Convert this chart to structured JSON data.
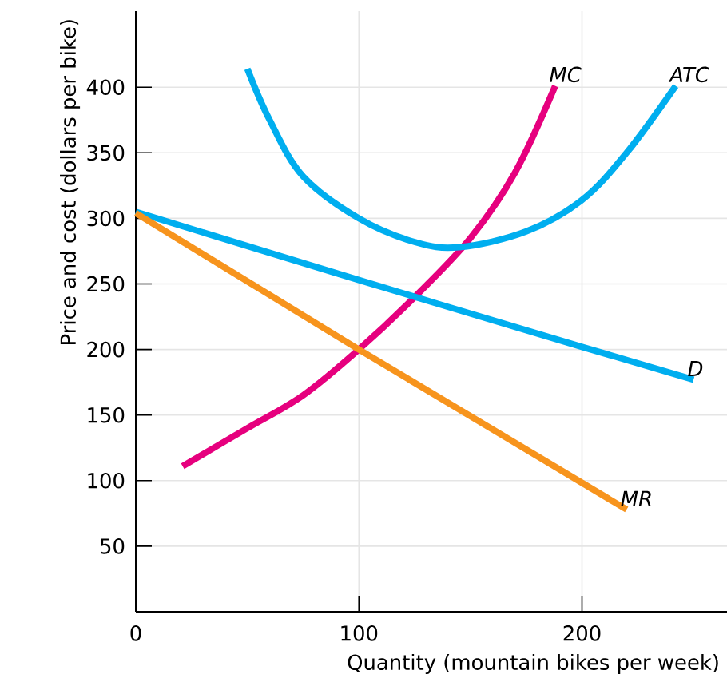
{
  "chart_data": {
    "type": "line",
    "xlabel": "Quantity (mountain bikes per week)",
    "ylabel": "Price and cost (dollars per bike)",
    "xlim": [
      0,
      265
    ],
    "ylim": [
      0,
      458
    ],
    "xticks": [
      {
        "value": 0,
        "label": "0"
      },
      100,
      200
    ],
    "yticks": [
      50,
      100,
      150,
      200,
      250,
      300,
      350,
      400
    ],
    "grid": true,
    "series": [
      {
        "name": "MC",
        "color": "#e6007e",
        "x": [
          21,
          50,
          75,
          100,
          125,
          150,
          170,
          188
        ],
        "values": [
          111,
          140,
          165,
          200,
          240,
          285,
          335,
          401
        ]
      },
      {
        "name": "ATC",
        "color": "#00aeef",
        "x": [
          50,
          60,
          75,
          100,
          125,
          145,
          175,
          200,
          220,
          242
        ],
        "values": [
          414,
          375,
          332,
          300,
          282,
          278,
          290,
          314,
          350,
          401
        ]
      },
      {
        "name": "D",
        "color": "#00aeef",
        "x": [
          0,
          100,
          200,
          250
        ],
        "values": [
          305,
          253,
          202,
          177
        ]
      },
      {
        "name": "MR",
        "color": "#f7941d",
        "x": [
          0,
          100,
          220
        ],
        "values": [
          304,
          200,
          78
        ]
      }
    ]
  }
}
